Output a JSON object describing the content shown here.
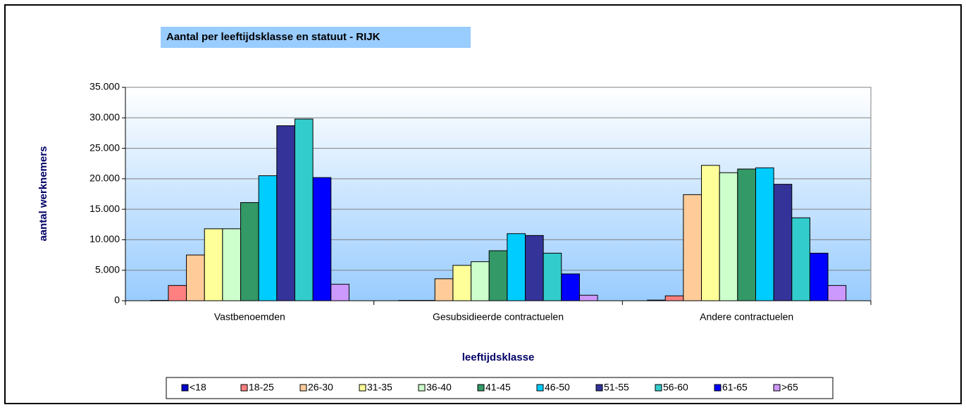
{
  "chart_data": {
    "type": "bar",
    "title": "Aantal  per leeftijdsklasse en statuut - RIJK",
    "y_label": "aantal werknemers",
    "x_label": "leeftijdsklasse",
    "categories": [
      "Vastbenoemden",
      "Gesubsidieerde contractuelen",
      "Andere contractuelen"
    ],
    "series": [
      {
        "name": "<18",
        "color": "#0000cc",
        "values": [
          50,
          50,
          100
        ]
      },
      {
        "name": "18-25",
        "color": "#ff8080",
        "values": [
          2500,
          50,
          800
        ]
      },
      {
        "name": "26-30",
        "color": "#ffcc99",
        "values": [
          7500,
          3600,
          17400
        ]
      },
      {
        "name": "31-35",
        "color": "#ffff99",
        "values": [
          11800,
          5800,
          22200
        ]
      },
      {
        "name": "36-40",
        "color": "#ccffcc",
        "values": [
          11800,
          6400,
          21000
        ]
      },
      {
        "name": "41-45",
        "color": "#339966",
        "values": [
          16100,
          8200,
          21600
        ]
      },
      {
        "name": "46-50",
        "color": "#00ccff",
        "values": [
          20500,
          11000,
          21800
        ]
      },
      {
        "name": "51-55",
        "color": "#333399",
        "values": [
          28700,
          10700,
          19100
        ]
      },
      {
        "name": "56-60",
        "color": "#33cccc",
        "values": [
          29800,
          7800,
          13600
        ]
      },
      {
        "name": "61-65",
        "color": "#0000ff",
        "values": [
          20200,
          4400,
          7800
        ]
      },
      {
        "name": ">65",
        "color": "#cc99ff",
        "values": [
          2700,
          900,
          2500
        ]
      }
    ],
    "ylim": [
      0,
      35000
    ],
    "yticks": [
      0,
      {
        "value": 5000,
        "label": "5.000"
      },
      {
        "value": 10000,
        "label": "10.000"
      },
      {
        "value": 15000,
        "label": "15.000"
      },
      {
        "value": 20000,
        "label": "20.000"
      },
      {
        "value": 25000,
        "label": "25.000"
      },
      {
        "value": 30000,
        "label": "30.000"
      },
      {
        "value": 35000,
        "label": "35.000"
      }
    ],
    "grid": true,
    "legend": "bottom"
  }
}
